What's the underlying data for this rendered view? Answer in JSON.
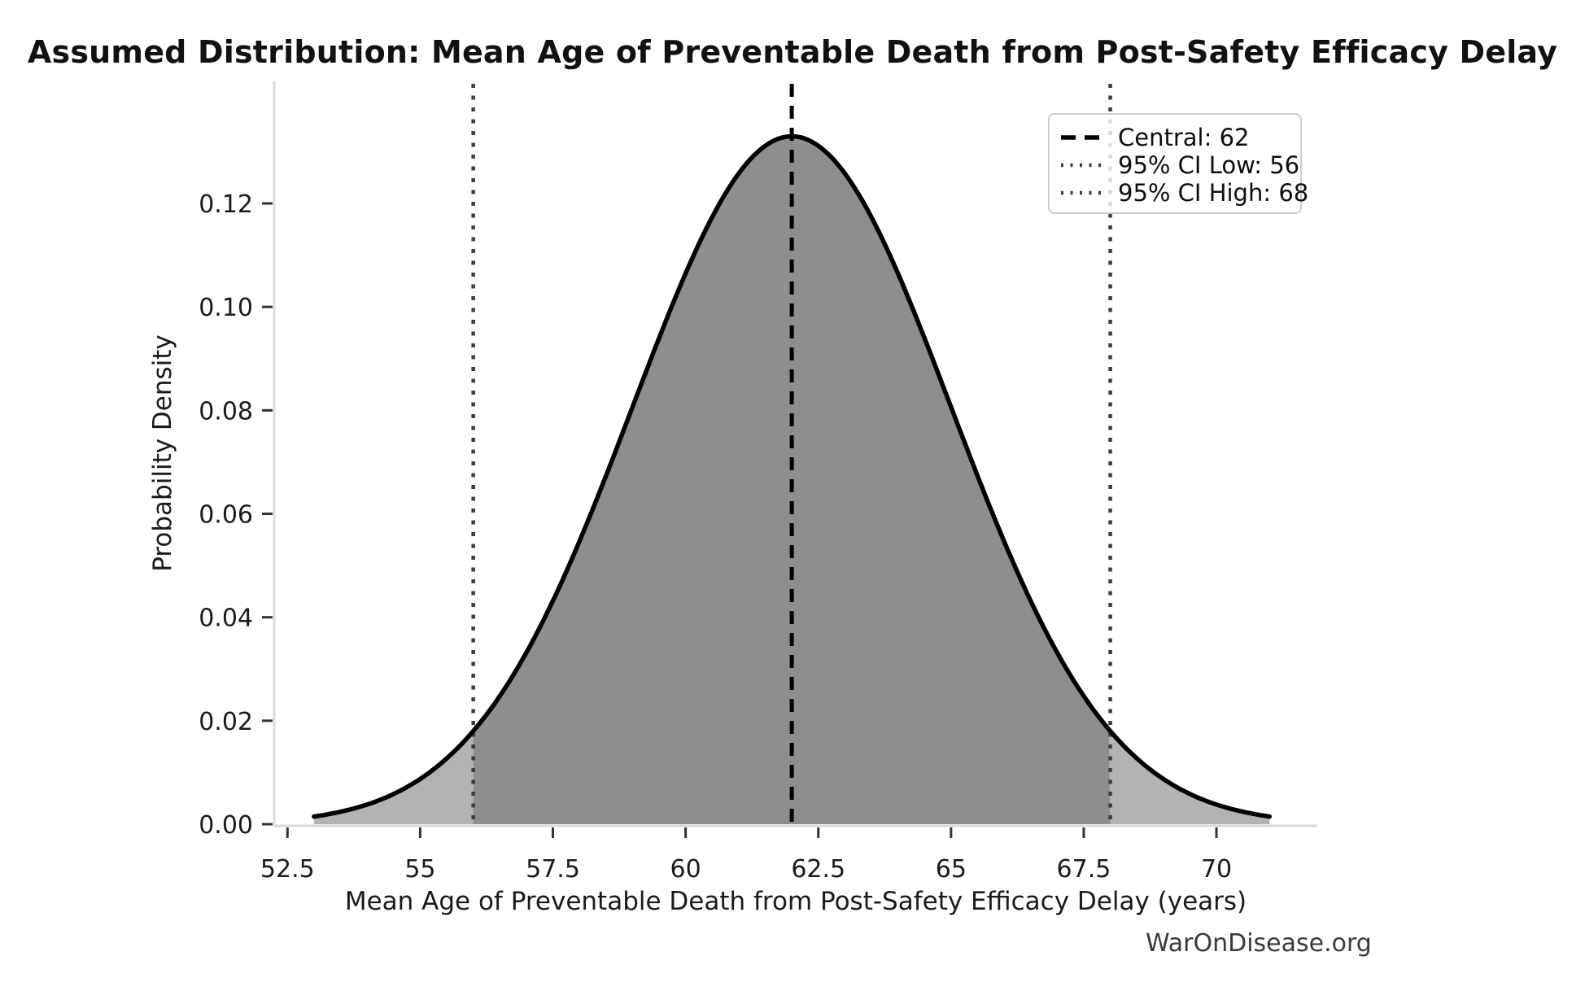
{
  "title": "Assumed Distribution: Mean Age of Preventable Death from Post-Safety Efficacy Delay",
  "watermark": "WarOnDisease.org",
  "chart_data": {
    "type": "area",
    "title": "Assumed Distribution: Mean Age of Preventable Death from Post-Safety Efficacy Delay",
    "xlabel": "Mean Age of Preventable Death from Post-Safety Efficacy Delay (years)",
    "ylabel": "Probability Density",
    "distribution": {
      "kind": "normal",
      "mean": 62,
      "sigma": 3,
      "peak_density": 0.133
    },
    "central": 62,
    "ci_low": 56,
    "ci_high": 68,
    "curve_range": [
      53,
      71
    ],
    "xlim": [
      52.25,
      71.9
    ],
    "ylim": [
      0,
      0.1436
    ],
    "x_ticks": [
      52.5,
      55,
      57.5,
      60,
      62.5,
      65,
      67.5,
      70
    ],
    "x_tick_labels": [
      "52.5",
      "55",
      "57.5",
      "60",
      "62.5",
      "65",
      "67.5",
      "70"
    ],
    "y_ticks": [
      0.0,
      0.02,
      0.04,
      0.06,
      0.08,
      0.1,
      0.12
    ],
    "y_tick_labels": [
      "0.00",
      "0.02",
      "0.04",
      "0.06",
      "0.08",
      "0.10",
      "0.12"
    ],
    "grid": false,
    "legend_position": "upper right",
    "legend": [
      {
        "label": "Central: 62",
        "line_style": "dashed",
        "color": "#000000"
      },
      {
        "label": "95% CI Low: 56",
        "line_style": "dotted",
        "color": "#3c3c3c"
      },
      {
        "label": "95% CI High: 68",
        "line_style": "dotted",
        "color": "#3c3c3c"
      }
    ],
    "colors": {
      "curve": "#000000",
      "fill_tail": "#b3b3b3",
      "fill_ci": "#8e8e8e",
      "central_line": "#000000",
      "ci_line": "#3c3c3c",
      "spine": "#d9d9d9",
      "tick": "#333333",
      "tick_text": "#1a1a1a"
    }
  }
}
